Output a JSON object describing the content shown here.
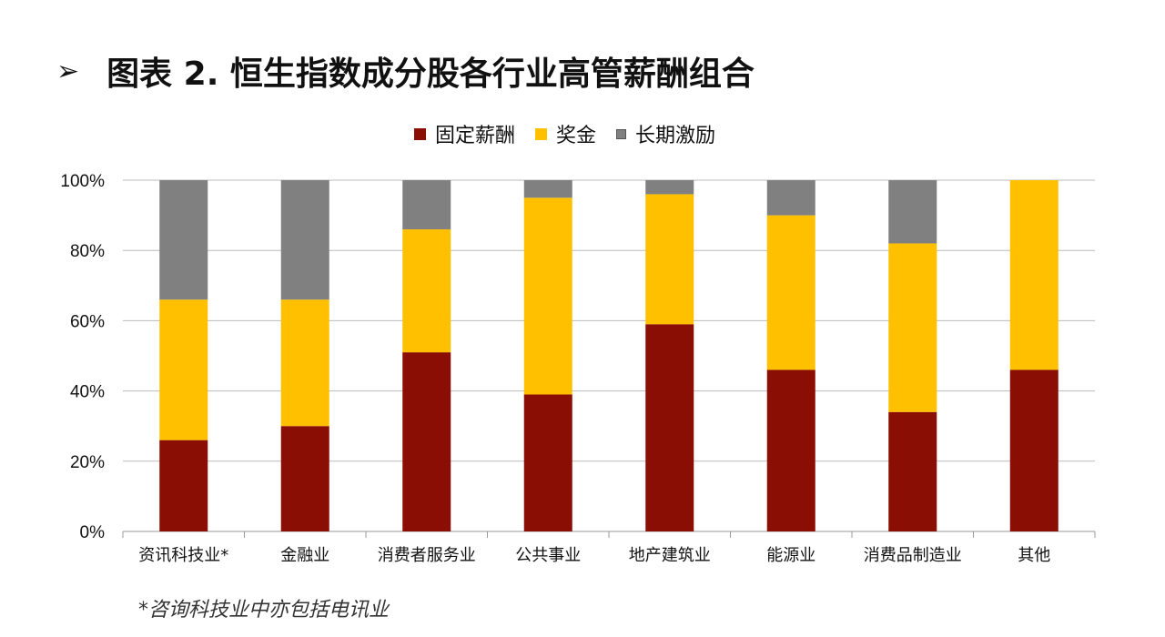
{
  "title": {
    "marker": "➢",
    "text": "图表 2. 恒生指数成分股各行业高管薪酬组合"
  },
  "footnote": "*咨询科技业中亦包括电讯业",
  "chart_data": {
    "type": "bar",
    "stacked": true,
    "percent": true,
    "categories": [
      "资讯科技业*",
      "金融业",
      "消费者服务业",
      "公共事业",
      "地产建筑业",
      "能源业",
      "消费品制造业",
      "其他"
    ],
    "series": [
      {
        "name": "固定薪酬",
        "color": "#8B0E04",
        "values": [
          26,
          30,
          51,
          39,
          59,
          46,
          34,
          46
        ]
      },
      {
        "name": "奖金",
        "color": "#FFC000",
        "values": [
          40,
          36,
          35,
          56,
          37,
          44,
          48,
          54
        ]
      },
      {
        "name": "长期激励",
        "color": "#808080",
        "values": [
          34,
          34,
          14,
          5,
          4,
          10,
          18,
          0
        ]
      }
    ],
    "ylim": [
      0,
      100
    ],
    "yticks": [
      "0%",
      "20%",
      "40%",
      "60%",
      "80%",
      "100%"
    ],
    "grid": true,
    "legend_position": "top"
  }
}
